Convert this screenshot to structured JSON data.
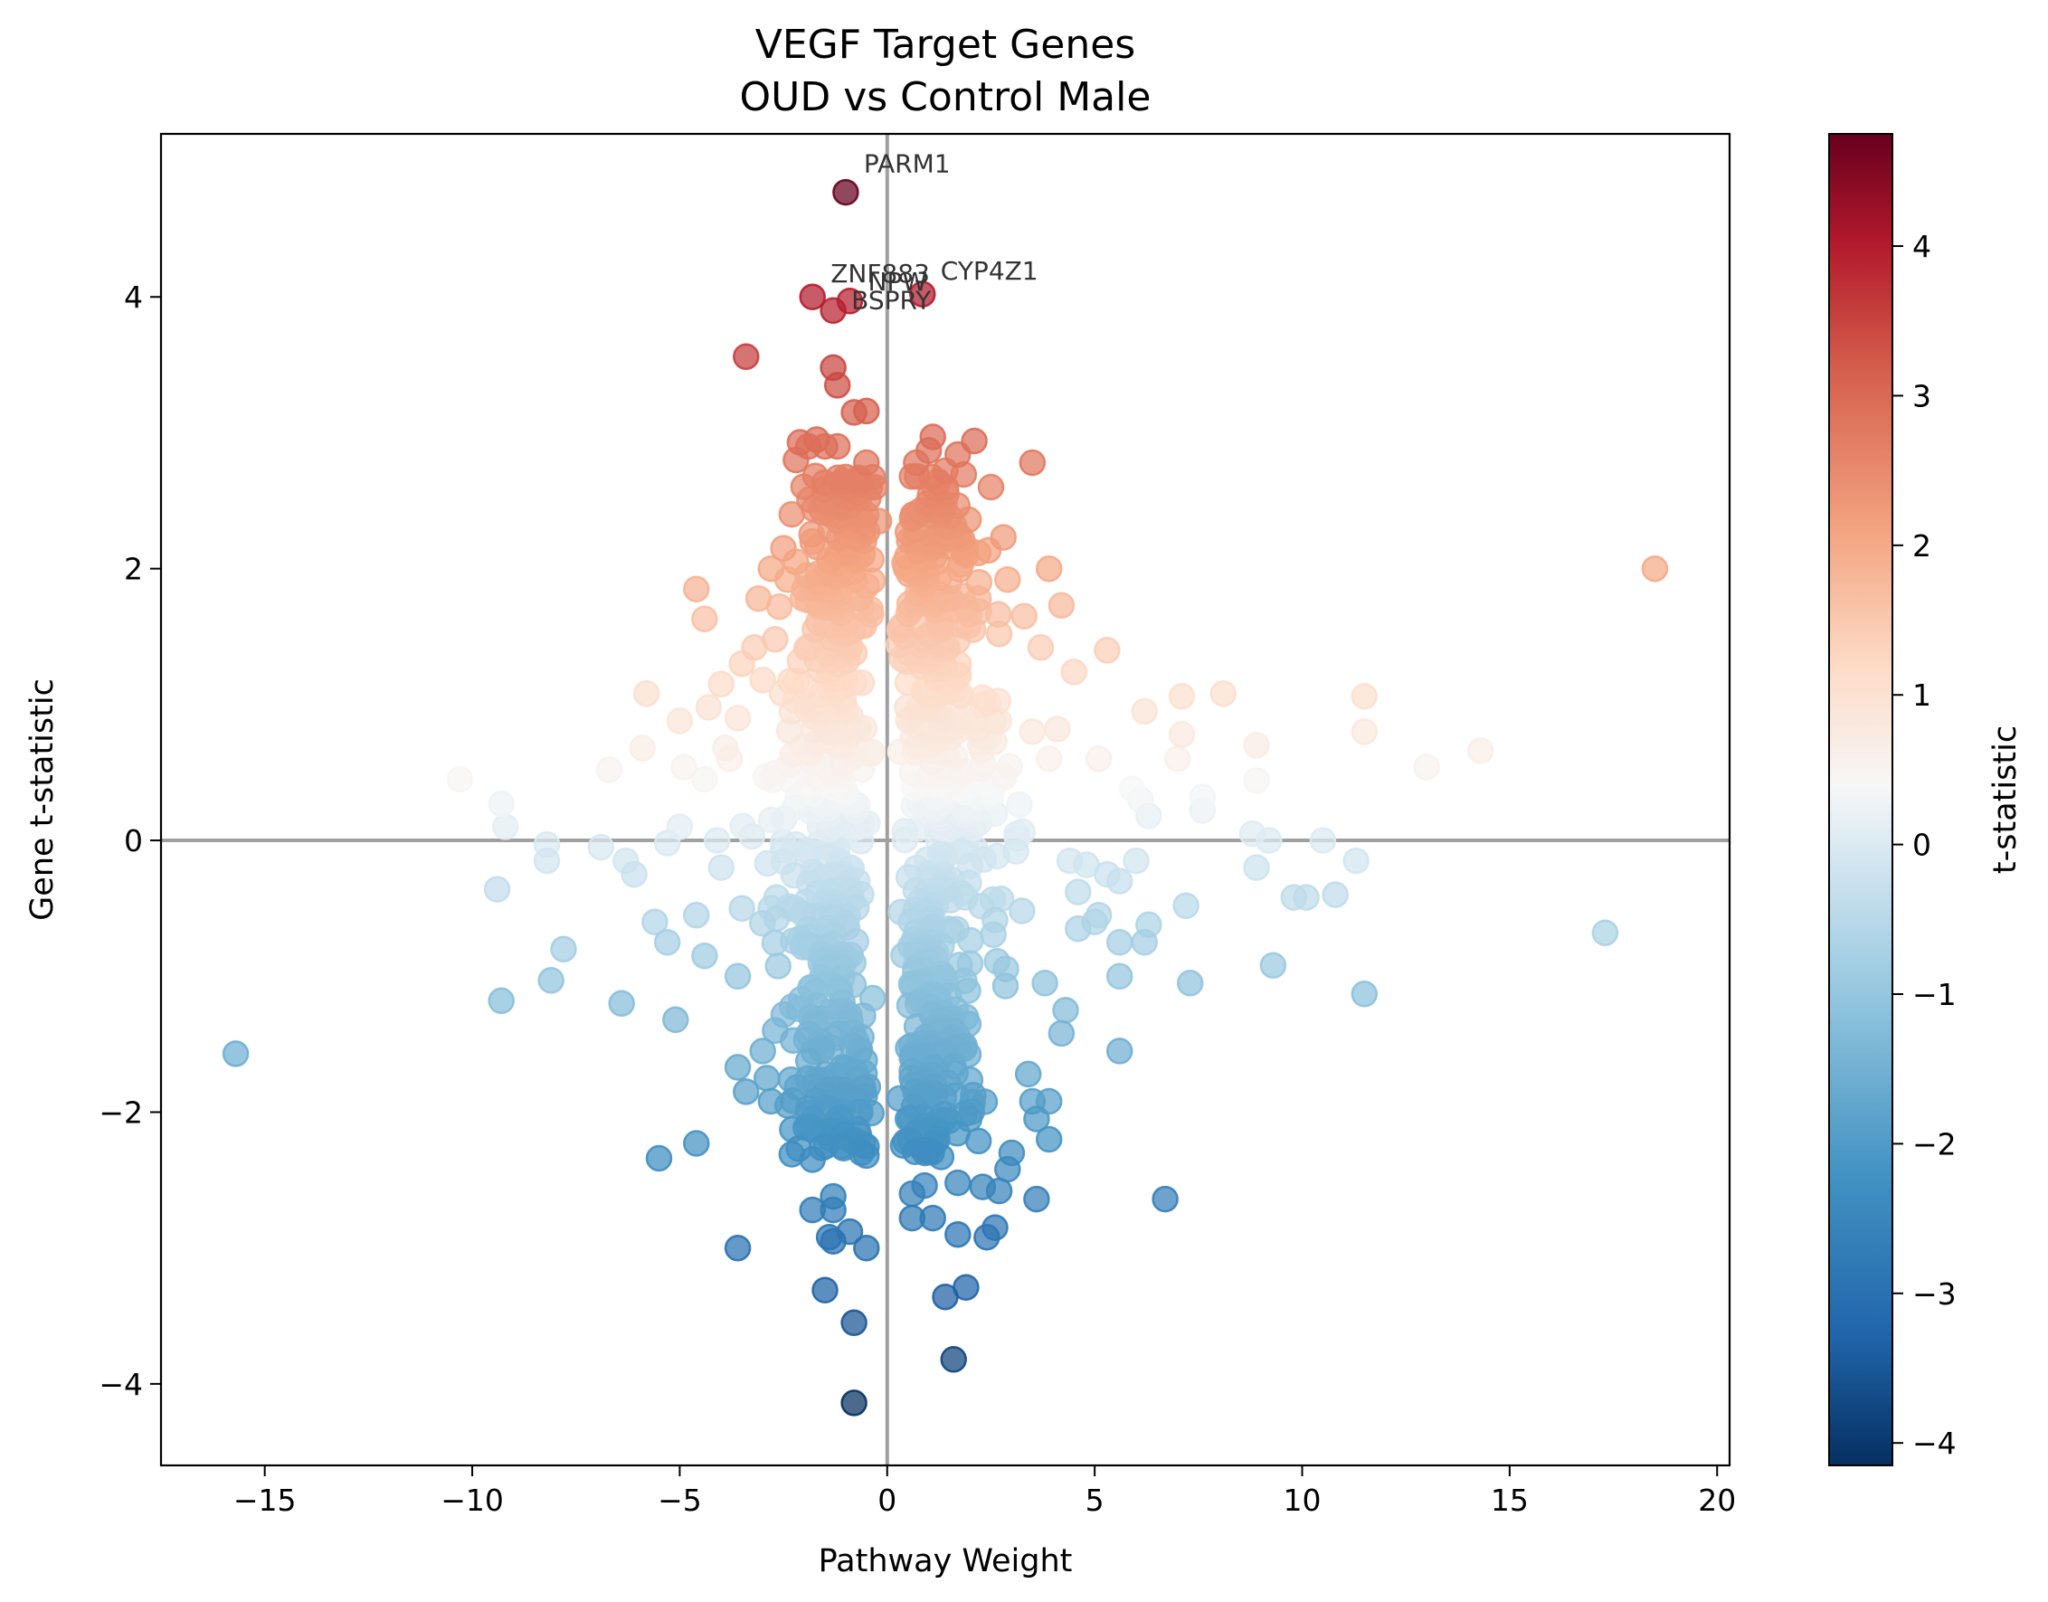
{
  "chart_data": {
    "type": "scatter",
    "title": "VEGF Target Genes",
    "subtitle": "OUD vs Control Male",
    "xlabel": "Pathway Weight",
    "ylabel": "Gene t-statistic",
    "colorbar_label": "t-statistic",
    "colormap": "RdBu_r",
    "xlim": [
      -17.5,
      20.3
    ],
    "ylim": [
      -4.6,
      5.2
    ],
    "clim": [
      -4.15,
      4.75
    ],
    "x_ticks": [
      -15,
      -10,
      -5,
      0,
      5,
      10,
      15,
      20
    ],
    "x_tick_labels": [
      "−15",
      "−10",
      "−5",
      "0",
      "5",
      "10",
      "15",
      "20"
    ],
    "y_ticks": [
      -4,
      -2,
      0,
      2,
      4
    ],
    "y_tick_labels": [
      "−4",
      "−2",
      "0",
      "2",
      "4"
    ],
    "colorbar_ticks": [
      -4,
      -3,
      -2,
      -1,
      0,
      1,
      2,
      3,
      4
    ],
    "colorbar_tick_labels": [
      "−4",
      "−3",
      "−2",
      "−1",
      "0",
      "1",
      "2",
      "3",
      "4"
    ],
    "reference_lines": {
      "x": 0,
      "y": 0
    },
    "annotations": [
      {
        "label": "PARM1",
        "x": -1.0,
        "y": 4.77
      },
      {
        "label": "ZNF883",
        "x": -1.8,
        "y": 4.0
      },
      {
        "label": "BSPRY",
        "x": -1.3,
        "y": 3.9
      },
      {
        "label": "NPW",
        "x": -0.9,
        "y": 3.97
      },
      {
        "label": "CYP4Z1",
        "x": 0.85,
        "y": 4.02
      }
    ],
    "points": [
      [
        -1.0,
        4.77
      ],
      [
        -1.8,
        4.0
      ],
      [
        -1.3,
        3.9
      ],
      [
        -0.9,
        3.97
      ],
      [
        0.85,
        4.02
      ],
      [
        -3.4,
        3.56
      ],
      [
        -1.3,
        3.48
      ],
      [
        -1.2,
        3.35
      ],
      [
        -0.8,
        3.15
      ],
      [
        -0.5,
        3.16
      ],
      [
        -2.1,
        2.93
      ],
      [
        -1.7,
        2.95
      ],
      [
        -1.5,
        2.9
      ],
      [
        -1.2,
        2.9
      ],
      [
        -1.9,
        2.9
      ],
      [
        -2.2,
        2.8
      ],
      [
        -0.5,
        2.78
      ],
      [
        -0.7,
        2.65
      ],
      [
        -0.3,
        2.6
      ],
      [
        -0.9,
        2.55
      ],
      [
        1.1,
        2.97
      ],
      [
        2.1,
        2.94
      ],
      [
        1.0,
        2.87
      ],
      [
        1.7,
        2.84
      ],
      [
        3.5,
        2.78
      ],
      [
        0.7,
        2.78
      ],
      [
        1.4,
        2.72
      ],
      [
        2.5,
        2.6
      ],
      [
        -1.1,
        2.45
      ],
      [
        -2.3,
        2.4
      ],
      [
        -1.6,
        2.45
      ],
      [
        -0.2,
        2.35
      ],
      [
        1.3,
        2.4
      ],
      [
        1.5,
        2.38
      ],
      [
        0.5,
        2.27
      ],
      [
        1.8,
        2.22
      ],
      [
        2.8,
        2.23
      ],
      [
        -2.5,
        2.15
      ],
      [
        -1.8,
        2.2
      ],
      [
        -0.6,
        2.1
      ],
      [
        -2.2,
        2.05
      ],
      [
        -2.8,
        2.0
      ],
      [
        1.2,
        2.05
      ],
      [
        1.9,
        2.1
      ],
      [
        3.9,
        2.0
      ],
      [
        -4.6,
        1.85
      ],
      [
        -2.4,
        1.92
      ],
      [
        -1.4,
        1.85
      ],
      [
        2.9,
        1.92
      ],
      [
        0.6,
        1.98
      ],
      [
        18.5,
        2.0
      ],
      [
        -4.4,
        1.63
      ],
      [
        -3.1,
        1.78
      ],
      [
        -2.6,
        1.72
      ],
      [
        -0.4,
        1.7
      ],
      [
        2.2,
        1.78
      ],
      [
        3.3,
        1.65
      ],
      [
        4.2,
        1.73
      ],
      [
        0.9,
        1.75
      ],
      [
        1.6,
        1.7
      ],
      [
        -3.2,
        1.42
      ],
      [
        -2.7,
        1.48
      ],
      [
        -1.0,
        1.52
      ],
      [
        0.3,
        1.55
      ],
      [
        2.7,
        1.52
      ],
      [
        3.7,
        1.42
      ],
      [
        5.3,
        1.4
      ],
      [
        -3.5,
        1.3
      ],
      [
        -2.1,
        1.32
      ],
      [
        1.1,
        1.35
      ],
      [
        4.5,
        1.24
      ],
      [
        -5.8,
        1.08
      ],
      [
        -4.0,
        1.15
      ],
      [
        -3.0,
        1.18
      ],
      [
        7.1,
        1.06
      ],
      [
        8.1,
        1.08
      ],
      [
        11.5,
        1.06
      ],
      [
        -4.3,
        0.98
      ],
      [
        -2.3,
        0.95
      ],
      [
        6.2,
        0.95
      ],
      [
        0.8,
        1.0
      ],
      [
        2.3,
        1.05
      ],
      [
        -5.0,
        0.88
      ],
      [
        -3.6,
        0.9
      ],
      [
        1.9,
        0.88
      ],
      [
        3.5,
        0.8
      ],
      [
        4.1,
        0.82
      ],
      [
        7.1,
        0.78
      ],
      [
        11.5,
        0.8
      ],
      [
        -5.9,
        0.68
      ],
      [
        -3.9,
        0.68
      ],
      [
        -1.7,
        0.72
      ],
      [
        8.9,
        0.7
      ],
      [
        14.3,
        0.66
      ],
      [
        -6.7,
        0.52
      ],
      [
        -4.9,
        0.54
      ],
      [
        -3.8,
        0.6
      ],
      [
        3.9,
        0.6
      ],
      [
        5.1,
        0.6
      ],
      [
        7.0,
        0.6
      ],
      [
        13.0,
        0.54
      ],
      [
        -10.3,
        0.45
      ],
      [
        -4.4,
        0.45
      ],
      [
        0.6,
        0.5
      ],
      [
        2.8,
        0.48
      ],
      [
        8.9,
        0.44
      ],
      [
        -9.3,
        0.27
      ],
      [
        5.9,
        0.38
      ],
      [
        6.1,
        0.3
      ],
      [
        7.6,
        0.32
      ],
      [
        7.6,
        0.22
      ],
      [
        6.3,
        0.18
      ],
      [
        -9.2,
        0.1
      ],
      [
        -5.0,
        0.1
      ],
      [
        -2.8,
        0.15
      ],
      [
        2.0,
        0.2
      ],
      [
        9.2,
        0.0
      ],
      [
        10.5,
        0.0
      ],
      [
        8.8,
        0.05
      ],
      [
        -8.2,
        -0.03
      ],
      [
        -6.9,
        -0.05
      ],
      [
        -5.3,
        -0.02
      ],
      [
        -4.1,
        0.0
      ],
      [
        -2.2,
        -0.03
      ],
      [
        1.5,
        -0.05
      ],
      [
        3.1,
        -0.08
      ],
      [
        -8.2,
        -0.15
      ],
      [
        -6.3,
        -0.15
      ],
      [
        -4.0,
        -0.2
      ],
      [
        -6.1,
        -0.25
      ],
      [
        4.4,
        -0.15
      ],
      [
        4.8,
        -0.18
      ],
      [
        5.3,
        -0.25
      ],
      [
        6.0,
        -0.15
      ],
      [
        8.9,
        -0.2
      ],
      [
        11.3,
        -0.15
      ],
      [
        5.6,
        -0.3
      ],
      [
        -9.4,
        -0.36
      ],
      [
        9.8,
        -0.42
      ],
      [
        10.1,
        -0.42
      ],
      [
        10.8,
        -0.4
      ],
      [
        4.6,
        -0.38
      ],
      [
        -5.6,
        -0.6
      ],
      [
        -4.6,
        -0.55
      ],
      [
        -3.5,
        -0.5
      ],
      [
        5.1,
        -0.55
      ],
      [
        5.0,
        -0.6
      ],
      [
        4.6,
        -0.65
      ],
      [
        6.3,
        -0.62
      ],
      [
        7.2,
        -0.48
      ],
      [
        -7.8,
        -0.8
      ],
      [
        -5.3,
        -0.75
      ],
      [
        -4.4,
        -0.85
      ],
      [
        5.6,
        -0.75
      ],
      [
        6.2,
        -0.75
      ],
      [
        17.3,
        -0.68
      ],
      [
        -3.6,
        -1.0
      ],
      [
        -8.1,
        -1.03
      ],
      [
        9.3,
        -0.92
      ],
      [
        5.6,
        -1.0
      ],
      [
        7.3,
        -1.05
      ],
      [
        -9.3,
        -1.18
      ],
      [
        -6.4,
        -1.2
      ],
      [
        -5.1,
        -1.32
      ],
      [
        3.8,
        -1.05
      ],
      [
        11.5,
        -1.13
      ],
      [
        4.3,
        -1.25
      ],
      [
        -15.7,
        -1.57
      ],
      [
        -2.7,
        -1.4
      ],
      [
        -3.0,
        -1.55
      ],
      [
        5.6,
        -1.55
      ],
      [
        4.2,
        -1.42
      ],
      [
        -3.6,
        -1.67
      ],
      [
        -2.9,
        -1.75
      ],
      [
        3.4,
        -1.72
      ],
      [
        -3.4,
        -1.85
      ],
      [
        -2.8,
        -1.92
      ],
      [
        -2.4,
        -1.95
      ],
      [
        -0.6,
        -1.83
      ],
      [
        0.3,
        -1.9
      ],
      [
        3.5,
        -1.92
      ],
      [
        3.9,
        -1.92
      ],
      [
        -1.8,
        -2.05
      ],
      [
        -1.2,
        -2.05
      ],
      [
        -0.7,
        -2.0
      ],
      [
        0.5,
        -2.05
      ],
      [
        1.2,
        -2.15
      ],
      [
        3.6,
        -2.05
      ],
      [
        -1.5,
        -2.15
      ],
      [
        -1.1,
        -2.25
      ],
      [
        3.9,
        -2.2
      ],
      [
        -4.6,
        -2.23
      ],
      [
        -5.5,
        -2.34
      ],
      [
        -2.3,
        -2.31
      ],
      [
        -1.8,
        -2.35
      ],
      [
        -0.5,
        -2.32
      ],
      [
        1.0,
        -2.29
      ],
      [
        1.3,
        -2.33
      ],
      [
        3.0,
        -2.3
      ],
      [
        2.9,
        -2.42
      ],
      [
        -1.8,
        -2.72
      ],
      [
        -1.3,
        -2.62
      ],
      [
        -1.3,
        -2.72
      ],
      [
        0.6,
        -2.6
      ],
      [
        0.9,
        -2.54
      ],
      [
        1.7,
        -2.52
      ],
      [
        2.3,
        -2.55
      ],
      [
        2.7,
        -2.58
      ],
      [
        3.6,
        -2.64
      ],
      [
        6.7,
        -2.64
      ],
      [
        -1.4,
        -2.92
      ],
      [
        -0.9,
        -2.88
      ],
      [
        0.6,
        -2.78
      ],
      [
        1.1,
        -2.78
      ],
      [
        2.6,
        -2.85
      ],
      [
        -3.6,
        -3.0
      ],
      [
        -1.3,
        -2.95
      ],
      [
        -0.5,
        -3.0
      ],
      [
        1.7,
        -2.9
      ],
      [
        2.4,
        -2.92
      ],
      [
        -1.5,
        -3.31
      ],
      [
        1.4,
        -3.36
      ],
      [
        1.9,
        -3.29
      ],
      [
        -0.8,
        -3.55
      ],
      [
        1.6,
        -3.82
      ],
      [
        -0.8,
        -4.14
      ]
    ],
    "cloud": {
      "center_gap": [
        -0.2,
        0.2
      ],
      "x_spread": 1.2,
      "y_range": [
        -2.3,
        2.7
      ],
      "point_count": 900
    }
  }
}
